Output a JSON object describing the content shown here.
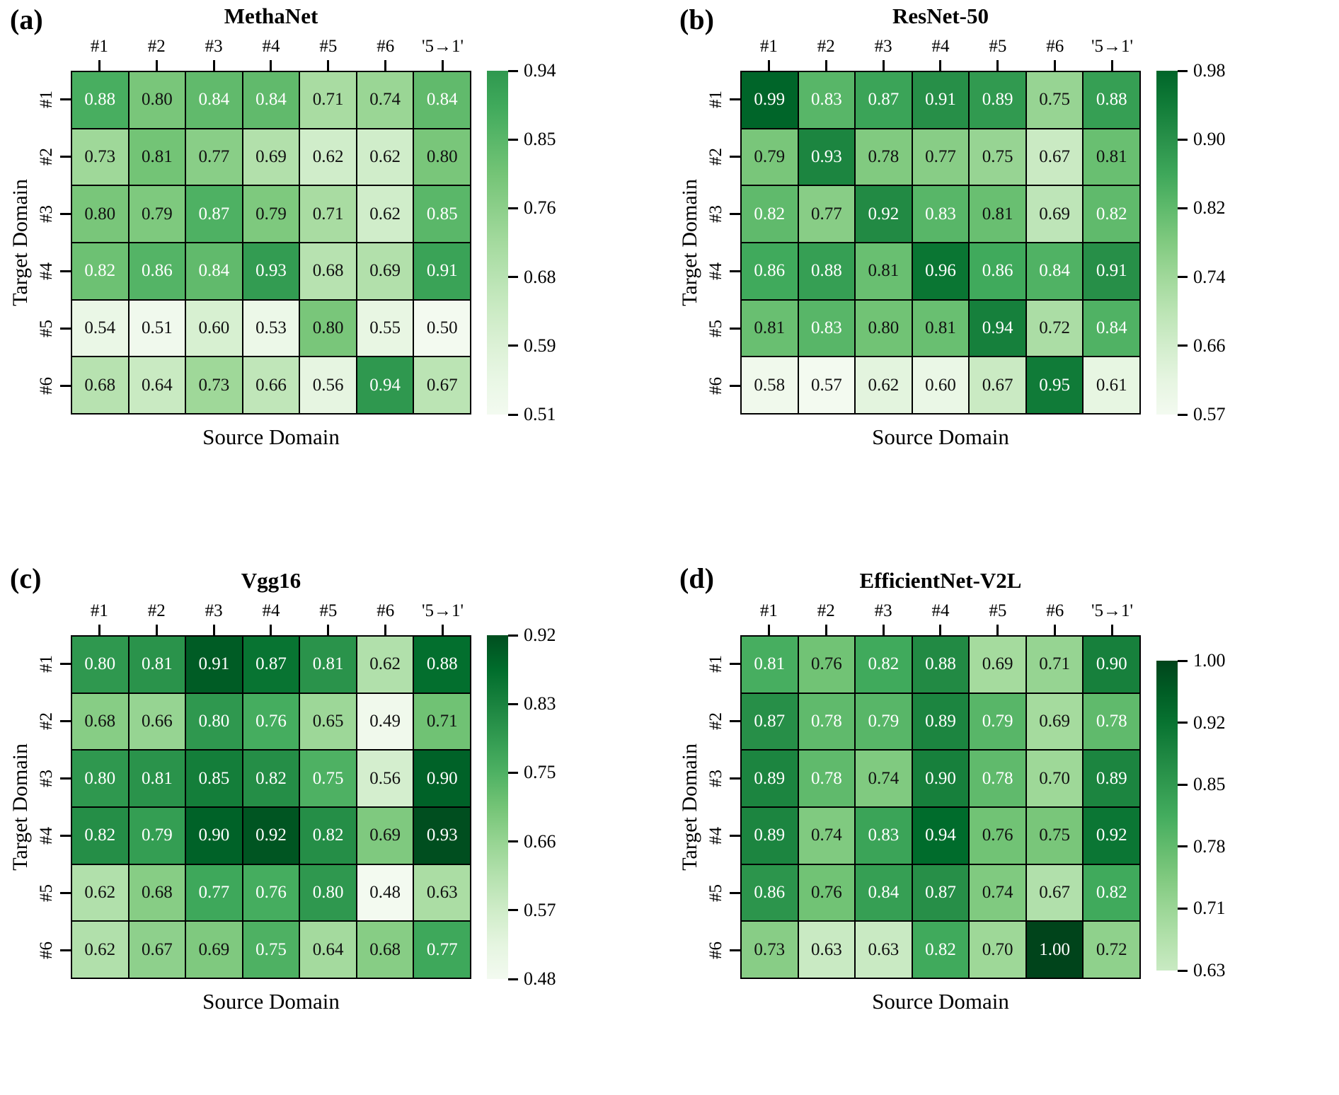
{
  "figure": {
    "xlabel": "Source Domain",
    "ylabel": "Target Domain",
    "columns": [
      "#1",
      "#2",
      "#3",
      "#4",
      "#5",
      "#6",
      "'5→1'"
    ],
    "rows": [
      "#1",
      "#2",
      "#3",
      "#4",
      "#5",
      "#6"
    ]
  },
  "chart_data": [
    {
      "type": "heatmap",
      "panel_label": "(a)",
      "title": "MethaNet",
      "xlabel": "Source Domain",
      "ylabel": "Target Domain",
      "columns": [
        "#1",
        "#2",
        "#3",
        "#4",
        "#5",
        "#6",
        "'5→1'"
      ],
      "rows": [
        "#1",
        "#2",
        "#3",
        "#4",
        "#5",
        "#6"
      ],
      "values": [
        [
          0.88,
          0.8,
          0.84,
          0.84,
          0.71,
          0.74,
          0.84
        ],
        [
          0.73,
          0.81,
          0.77,
          0.69,
          0.62,
          0.62,
          0.8
        ],
        [
          0.8,
          0.79,
          0.87,
          0.79,
          0.71,
          0.62,
          0.85
        ],
        [
          0.82,
          0.86,
          0.84,
          0.93,
          0.68,
          0.69,
          0.91
        ],
        [
          0.54,
          0.51,
          0.6,
          0.53,
          0.8,
          0.55,
          0.5
        ],
        [
          0.68,
          0.64,
          0.73,
          0.66,
          0.56,
          0.94,
          0.67
        ]
      ],
      "vmin": 0.5,
      "vmax": 0.94,
      "colorbar_ticks": [
        "0.94",
        "0.85",
        "0.76",
        "0.68",
        "0.59",
        "0.51"
      ],
      "cmap": "Greens",
      "cmap_range": [
        0.03,
        0.7
      ],
      "white_text_min": 0.82
    },
    {
      "type": "heatmap",
      "panel_label": "(b)",
      "title": "ResNet-50",
      "xlabel": "Source Domain",
      "ylabel": "Target Domain",
      "columns": [
        "#1",
        "#2",
        "#3",
        "#4",
        "#5",
        "#6",
        "'5→1'"
      ],
      "rows": [
        "#1",
        "#2",
        "#3",
        "#4",
        "#5",
        "#6"
      ],
      "values": [
        [
          0.99,
          0.83,
          0.87,
          0.91,
          0.89,
          0.75,
          0.88
        ],
        [
          0.79,
          0.93,
          0.78,
          0.77,
          0.75,
          0.67,
          0.81
        ],
        [
          0.82,
          0.77,
          0.92,
          0.83,
          0.81,
          0.69,
          0.82
        ],
        [
          0.86,
          0.88,
          0.81,
          0.96,
          0.86,
          0.84,
          0.91
        ],
        [
          0.81,
          0.83,
          0.8,
          0.81,
          0.94,
          0.72,
          0.84
        ],
        [
          0.58,
          0.57,
          0.62,
          0.6,
          0.67,
          0.95,
          0.61
        ]
      ],
      "vmin": 0.57,
      "vmax": 0.99,
      "colorbar_ticks": [
        "0.98",
        "0.90",
        "0.82",
        "0.74",
        "0.66",
        "0.57"
      ],
      "cmap": "Greens",
      "cmap_range": [
        0.03,
        0.9
      ],
      "white_text_min": 0.82
    },
    {
      "type": "heatmap",
      "panel_label": "(c)",
      "title": "Vgg16",
      "xlabel": "Source Domain",
      "ylabel": "Target Domain",
      "columns": [
        "#1",
        "#2",
        "#3",
        "#4",
        "#5",
        "#6",
        "'5→1'"
      ],
      "rows": [
        "#1",
        "#2",
        "#3",
        "#4",
        "#5",
        "#6"
      ],
      "values": [
        [
          0.8,
          0.81,
          0.91,
          0.87,
          0.81,
          0.62,
          0.88
        ],
        [
          0.68,
          0.66,
          0.8,
          0.76,
          0.65,
          0.49,
          0.71
        ],
        [
          0.8,
          0.81,
          0.85,
          0.82,
          0.75,
          0.56,
          0.9
        ],
        [
          0.82,
          0.79,
          0.9,
          0.92,
          0.82,
          0.69,
          0.93
        ],
        [
          0.62,
          0.68,
          0.77,
          0.76,
          0.8,
          0.48,
          0.63
        ],
        [
          0.62,
          0.67,
          0.69,
          0.75,
          0.64,
          0.68,
          0.77
        ]
      ],
      "vmin": 0.48,
      "vmax": 0.93,
      "colorbar_ticks": [
        "0.92",
        "0.83",
        "0.75",
        "0.66",
        "0.57",
        "0.48"
      ],
      "cmap": "Greens",
      "cmap_range": [
        0.03,
        0.97
      ],
      "white_text_min": 0.75
    },
    {
      "type": "heatmap",
      "panel_label": "(d)",
      "title": "EfficientNet-V2L",
      "xlabel": "Source Domain",
      "ylabel": "Target Domain",
      "columns": [
        "#1",
        "#2",
        "#3",
        "#4",
        "#5",
        "#6",
        "'5→1'"
      ],
      "rows": [
        "#1",
        "#2",
        "#3",
        "#4",
        "#5",
        "#6"
      ],
      "values": [
        [
          0.81,
          0.76,
          0.82,
          0.88,
          0.69,
          0.71,
          0.9
        ],
        [
          0.87,
          0.78,
          0.79,
          0.89,
          0.79,
          0.69,
          0.78
        ],
        [
          0.89,
          0.78,
          0.74,
          0.9,
          0.78,
          0.7,
          0.89
        ],
        [
          0.89,
          0.74,
          0.83,
          0.94,
          0.76,
          0.75,
          0.92
        ],
        [
          0.86,
          0.76,
          0.84,
          0.87,
          0.74,
          0.67,
          0.82
        ],
        [
          0.73,
          0.63,
          0.63,
          0.82,
          0.7,
          1.0,
          0.72
        ]
      ],
      "vmin": 0.63,
      "vmax": 1.0,
      "colorbar_ticks": [
        "1.00",
        "0.92",
        "0.85",
        "0.78",
        "0.71",
        "0.63"
      ],
      "cmap": "Greens",
      "cmap_range": [
        0.24,
        1.0
      ],
      "white_text_min": 0.78
    }
  ]
}
